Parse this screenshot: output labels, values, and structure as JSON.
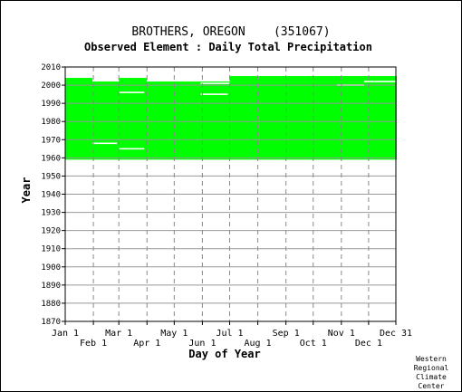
{
  "chart_data": {
    "type": "table",
    "title": "BROTHERS, OREGON    (351067)",
    "subtitle": "Observed Element : Daily Total Precipitation",
    "xlabel": "Day of Year",
    "ylabel": "Year",
    "xlim": [
      1,
      365
    ],
    "ylim": [
      1870,
      2010
    ],
    "y_ticks": [
      1870,
      1880,
      1890,
      1900,
      1910,
      1920,
      1930,
      1940,
      1950,
      1960,
      1970,
      1980,
      1990,
      2000,
      2010
    ],
    "x_ticks_upper": [
      {
        "label": "Jan 1",
        "day": 1
      },
      {
        "label": "Mar 1",
        "day": 60
      },
      {
        "label": "May 1",
        "day": 121
      },
      {
        "label": "Jul 1",
        "day": 182
      },
      {
        "label": "Sep 1",
        "day": 244
      },
      {
        "label": "Nov 1",
        "day": 305
      },
      {
        "label": "Dec 31",
        "day": 365
      }
    ],
    "x_ticks_lower": [
      {
        "label": "Feb 1",
        "day": 32
      },
      {
        "label": "Apr 1",
        "day": 91
      },
      {
        "label": "Jun 1",
        "day": 152
      },
      {
        "label": "Aug 1",
        "day": 213
      },
      {
        "label": "Oct 1",
        "day": 274
      },
      {
        "label": "Dec 1",
        "day": 335
      }
    ],
    "grid": true,
    "data_color": "#00ff00",
    "coverage": [
      {
        "day_start": 1,
        "day_end": 365,
        "year_start": 1959,
        "year_end": 2002
      },
      {
        "day_start": 1,
        "day_end": 30,
        "year_start": 2002,
        "year_end": 2004
      },
      {
        "day_start": 60,
        "day_end": 90,
        "year_start": 2002,
        "year_end": 2004
      },
      {
        "day_start": 182,
        "day_end": 365,
        "year_start": 2002,
        "year_end": 2005
      }
    ],
    "gaps": [
      {
        "day_start": 31,
        "day_end": 58,
        "year": 1968
      },
      {
        "day_start": 60,
        "day_end": 88,
        "year": 1965
      },
      {
        "day_start": 60,
        "day_end": 88,
        "year": 1996
      },
      {
        "day_start": 150,
        "day_end": 180,
        "year": 1995
      },
      {
        "day_start": 150,
        "day_end": 182,
        "year": 2001
      },
      {
        "day_start": 300,
        "day_end": 330,
        "year": 2000
      },
      {
        "day_start": 330,
        "day_end": 365,
        "year": 2002
      }
    ]
  },
  "footer": {
    "line1": "Western",
    "line2": "Regional",
    "line3": "Climate",
    "line4": "Center"
  }
}
